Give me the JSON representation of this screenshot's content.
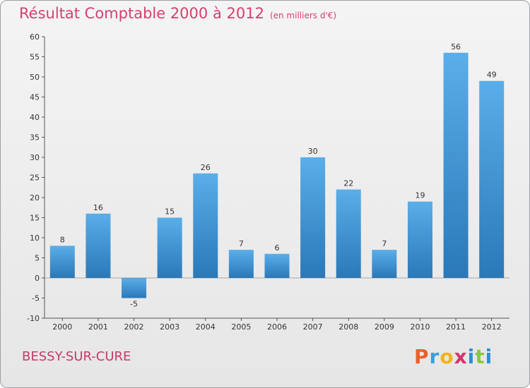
{
  "title": "Résultat Comptable 2000 à 2012",
  "subtitle": "(en milliers d'€)",
  "commune": "BESSY-SUR-CURE",
  "brand": {
    "letters": [
      "P",
      "r",
      "o",
      "x",
      "i",
      "t",
      "i"
    ],
    "colors": [
      "#e8612c",
      "#3aa0d8",
      "#f2b418",
      "#d6336c",
      "#2e8fd6",
      "#8cc63f",
      "#2e8fd6"
    ]
  },
  "colors": {
    "bar_light": "#5aaee9",
    "bar_dark": "#2a78b8",
    "title": "#d63f6e"
  },
  "chart_data": {
    "type": "bar",
    "title": "Résultat Comptable 2000 à 2012",
    "subtitle": "(en milliers d'€)",
    "categories": [
      "2000",
      "2001",
      "2002",
      "2003",
      "2004",
      "2005",
      "2006",
      "2007",
      "2008",
      "2009",
      "2010",
      "2011",
      "2012"
    ],
    "values": [
      8,
      16,
      -5,
      15,
      26,
      7,
      6,
      30,
      22,
      7,
      19,
      56,
      49
    ],
    "value_labels": [
      "8",
      "16",
      "-5",
      "15",
      "26",
      "7",
      "6",
      "30",
      "22",
      "7",
      "19",
      "56",
      "49"
    ],
    "ylim": [
      -10,
      60
    ],
    "yticks": [
      -10,
      -5,
      0,
      5,
      10,
      15,
      20,
      25,
      30,
      35,
      40,
      45,
      50,
      55,
      60
    ],
    "ytick_labels": [
      "-10",
      "-5",
      "0",
      "5",
      "10",
      "15",
      "20",
      "25",
      "30",
      "35",
      "40",
      "45",
      "50",
      "55",
      "60"
    ],
    "xlabel": "",
    "ylabel": "",
    "grid": false,
    "legend": "none"
  }
}
